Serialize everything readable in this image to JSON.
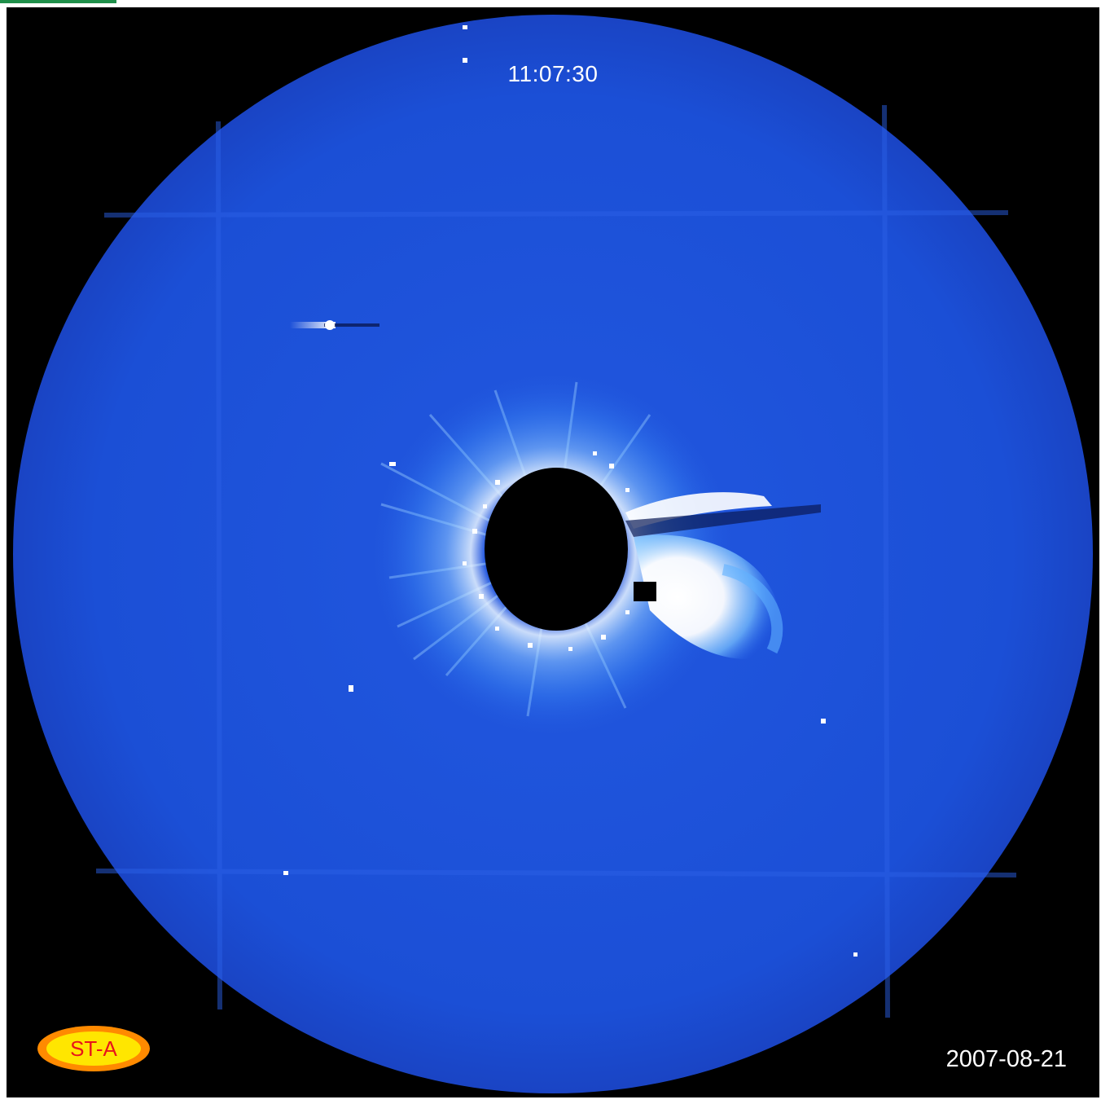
{
  "image": {
    "time": "11:07:30",
    "date": "2007-08-21",
    "spacecraft_badge": "ST-A"
  },
  "colors": {
    "background": "#000000",
    "field": "#1b4fd6",
    "field_edge": "#1e46c9",
    "occulter": "#000000",
    "ejecta": "#ffffff",
    "badge_fill": "#ffe600",
    "badge_ring": "#ff8a00",
    "badge_text": "#e8141b",
    "corner_mark": "#1f8f4a"
  }
}
